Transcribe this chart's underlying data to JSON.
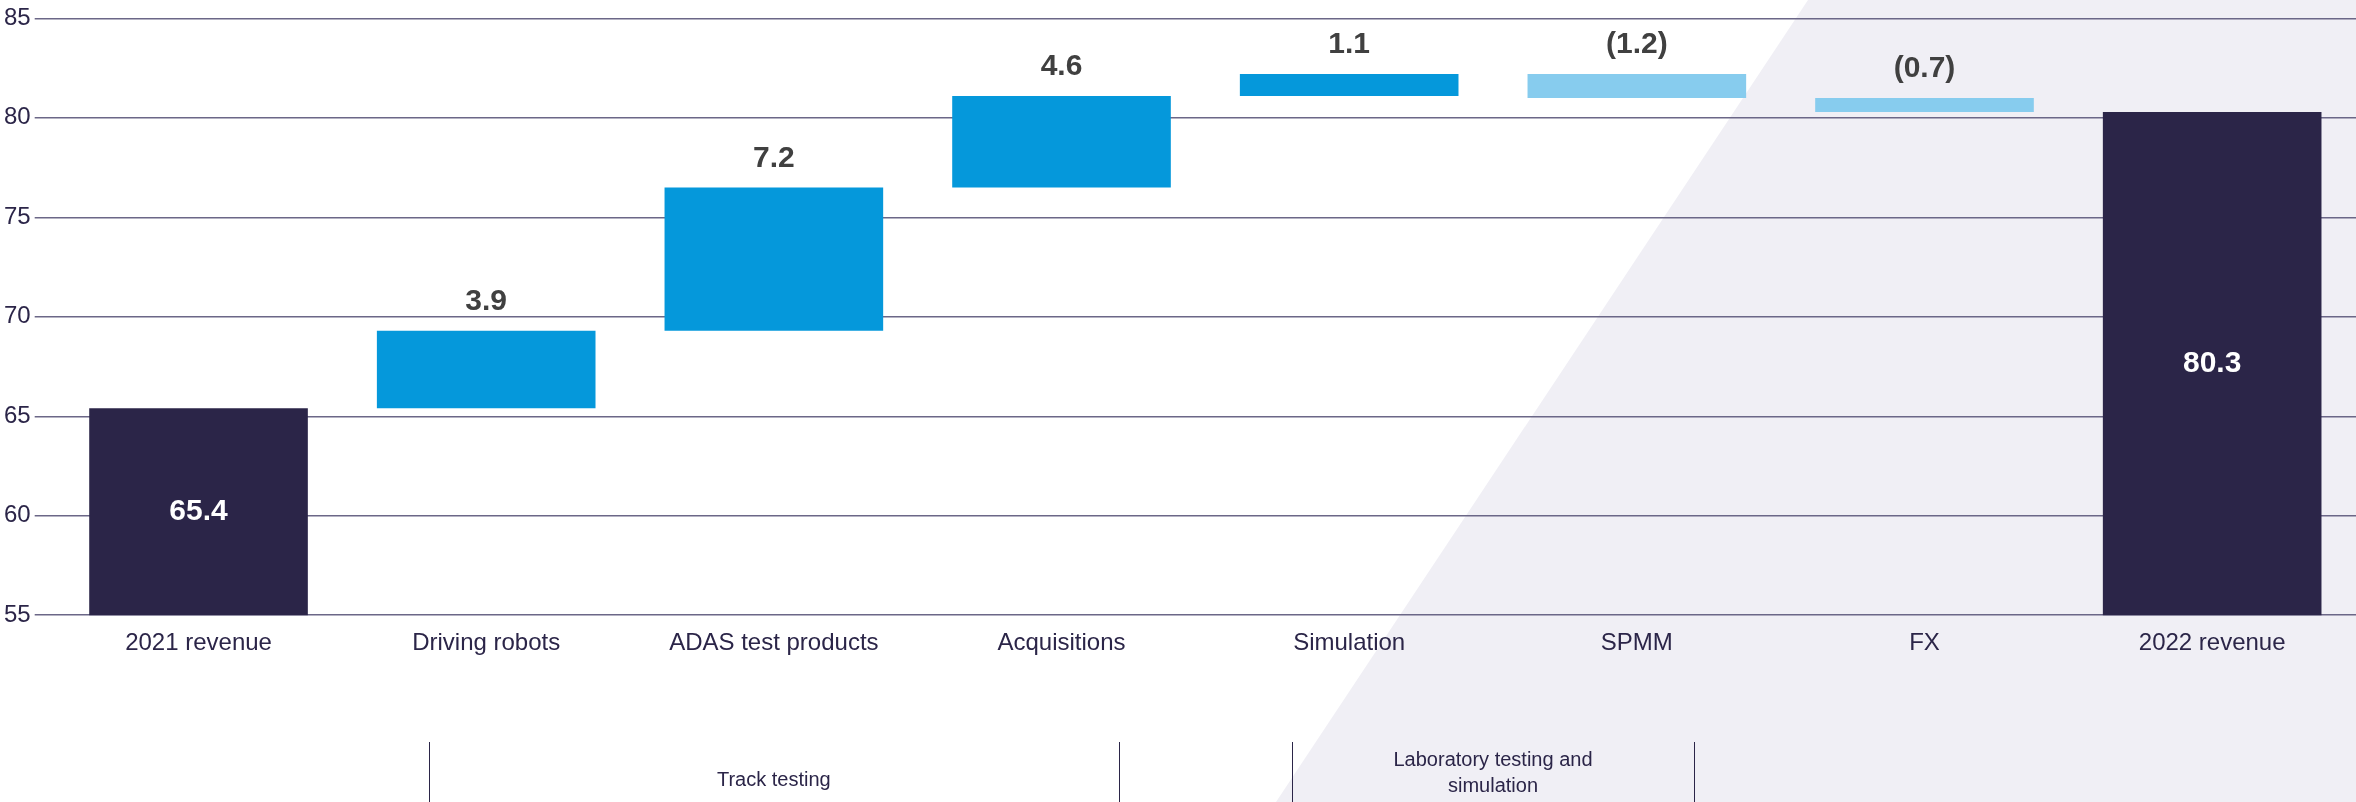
{
  "chart_data": {
    "type": "bar",
    "categories": [
      "2021 revenue",
      "Driving robots",
      "ADAS test products",
      "Acquisitions",
      "Simulation",
      "SPMM",
      "FX",
      "2022 revenue"
    ],
    "values": [
      65.4,
      3.9,
      7.2,
      4.6,
      1.1,
      -1.2,
      -0.7,
      80.3
    ],
    "base": [
      null,
      65.4,
      69.3,
      76.5,
      81.1,
      82.2,
      81.0,
      null
    ],
    "colors": [
      "#2b2548",
      "#0598db",
      "#0598db",
      "#0598db",
      "#0598db",
      "#87ccee",
      "#87ccee",
      "#2b2548"
    ],
    "value_labels": [
      "65.4",
      "3.9",
      "7.2",
      "4.6",
      "1.1",
      "(1.2)",
      "(0.7)",
      "80.3"
    ],
    "ylim": [
      55,
      85
    ],
    "yticks": [
      55,
      60,
      65,
      70,
      75,
      80,
      85
    ],
    "grid": "y",
    "legend": false,
    "annotations": [
      "Track testing",
      "Laboratory testing and simulation"
    ]
  }
}
